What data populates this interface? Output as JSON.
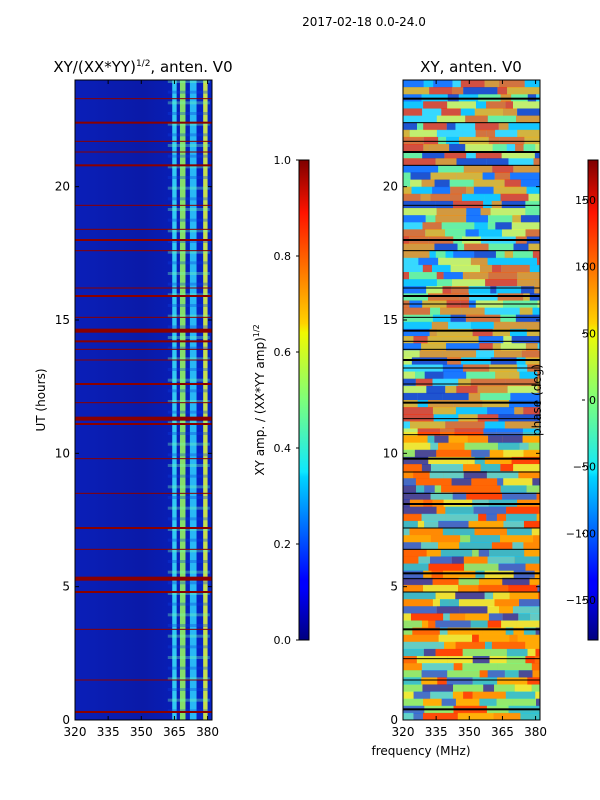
{
  "suptitle": "2017-02-18 0.0-24.0",
  "shared_xlabel": "frequency (MHz)",
  "chart_data": [
    {
      "type": "heatmap",
      "title_main": "XY/(XX*YY)",
      "title_exp": "1/2",
      "title_rest": ", anten. V0",
      "xlabel": "",
      "ylabel": "UT (hours)",
      "xlim": [
        320,
        382
      ],
      "ylim": [
        0,
        24
      ],
      "xticks": [
        320,
        335,
        350,
        365,
        380
      ],
      "yticks": [
        0,
        5,
        10,
        15,
        20
      ],
      "colorbar": {
        "label_main": "XY amp. / (XX*YY amp)",
        "label_exp": "1/2",
        "range": [
          0.0,
          1.0
        ],
        "ticks": [
          "0.0",
          "0.2",
          "0.4",
          "0.6",
          "0.8",
          "1.0"
        ],
        "tick_values": [
          0.0,
          0.2,
          0.4,
          0.6,
          0.8,
          1.0
        ]
      },
      "flag_bands_hours": [
        0.3,
        1.5,
        3.4,
        4.8,
        5.3,
        6.4,
        7.2,
        8.5,
        9.8,
        11.1,
        11.3,
        11.9,
        12.6,
        13.5,
        13.9,
        14.2,
        14.6,
        15.1,
        15.9,
        16.2,
        17.6,
        18.0,
        18.4,
        19.3,
        20.8,
        21.3,
        21.7,
        22.4,
        23.3
      ],
      "bright_band_MHz": [
        [
          364,
          366
        ],
        [
          367.5,
          370
        ],
        [
          372,
          375
        ],
        [
          378,
          380
        ]
      ]
    },
    {
      "type": "heatmap",
      "title": "XY, anten. V0",
      "xlabel": "",
      "ylabel": "",
      "xlim": [
        320,
        382
      ],
      "ylim": [
        0,
        24
      ],
      "xticks": [
        320,
        335,
        350,
        365,
        380
      ],
      "yticks": [
        0,
        5,
        10,
        15,
        20
      ],
      "colorbar": {
        "label": "phase (deg)",
        "range": [
          -180,
          180
        ],
        "ticks": [
          "−150",
          "−100",
          "−50",
          "0",
          "50",
          "100",
          "150"
        ],
        "tick_values": [
          -150,
          -100,
          -50,
          0,
          50,
          100,
          150
        ]
      },
      "flag_bands_hours": [
        0.4,
        1.5,
        2.3,
        3.4,
        4.8,
        5.3,
        5.5,
        6.4,
        7.2,
        8.1,
        8.5,
        9.3,
        9.8,
        10.7,
        11.3,
        11.9,
        12.6,
        13.2,
        13.5,
        13.9,
        14.2,
        14.6,
        15.1,
        15.6,
        15.9,
        16.2,
        17.6,
        18.0,
        19.3,
        20.8,
        21.3,
        21.7,
        22.4,
        23.3
      ]
    }
  ]
}
